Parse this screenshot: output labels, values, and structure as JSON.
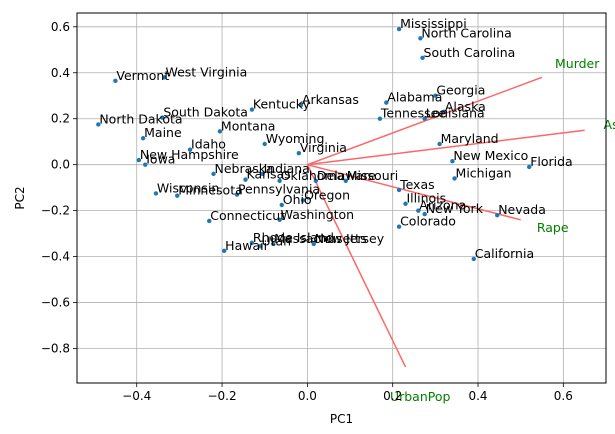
{
  "chart_data": {
    "type": "scatter",
    "title": "",
    "xlabel": "PC1",
    "ylabel": "PC2",
    "xlim": [
      -0.54,
      0.7
    ],
    "ylim": [
      -0.95,
      0.66
    ],
    "xticks": [
      -0.4,
      -0.2,
      0.0,
      0.2,
      0.4,
      0.6
    ],
    "xtick_labels": [
      "−0.4",
      "−0.2",
      "0.0",
      "0.2",
      "0.4",
      "0.6"
    ],
    "yticks": [
      0.6,
      0.4,
      0.2,
      0.0,
      -0.2,
      -0.4,
      -0.6,
      -0.8
    ],
    "ytick_labels": [
      "0.6",
      "0.4",
      "0.2",
      "0.0",
      "−0.2",
      "−0.4",
      "−0.6",
      "−0.8"
    ],
    "grid": true,
    "point_color": "#1f77b4",
    "points": [
      {
        "label": "Mississippi",
        "x": 0.215,
        "y": 0.59
      },
      {
        "label": "North Carolina",
        "x": 0.265,
        "y": 0.55
      },
      {
        "label": "South Carolina",
        "x": 0.27,
        "y": 0.465
      },
      {
        "label": "Vermont",
        "x": -0.45,
        "y": 0.365
      },
      {
        "label": "West Virginia",
        "x": -0.335,
        "y": 0.38
      },
      {
        "label": "Georgia",
        "x": 0.3,
        "y": 0.3
      },
      {
        "label": "Alabama",
        "x": 0.185,
        "y": 0.27
      },
      {
        "label": "Arkansas",
        "x": -0.015,
        "y": 0.26
      },
      {
        "label": "Kentucky",
        "x": -0.13,
        "y": 0.24
      },
      {
        "label": "Alaska",
        "x": 0.32,
        "y": 0.23
      },
      {
        "label": "South Dakota",
        "x": -0.34,
        "y": 0.205
      },
      {
        "label": "Tennessee",
        "x": 0.17,
        "y": 0.2
      },
      {
        "label": "Louisiana",
        "x": 0.275,
        "y": 0.2
      },
      {
        "label": "North Dakota",
        "x": -0.49,
        "y": 0.175
      },
      {
        "label": "Montana",
        "x": -0.205,
        "y": 0.145
      },
      {
        "label": "Maine",
        "x": -0.385,
        "y": 0.115
      },
      {
        "label": "Wyoming",
        "x": -0.1,
        "y": 0.09
      },
      {
        "label": "Maryland",
        "x": 0.31,
        "y": 0.09
      },
      {
        "label": "Idaho",
        "x": -0.275,
        "y": 0.065
      },
      {
        "label": "Virginia",
        "x": -0.02,
        "y": 0.05
      },
      {
        "label": "New Hampshire",
        "x": -0.395,
        "y": 0.02
      },
      {
        "label": "New Mexico",
        "x": 0.34,
        "y": 0.015
      },
      {
        "label": "Iowa",
        "x": -0.38,
        "y": 0.0
      },
      {
        "label": "Florida",
        "x": 0.52,
        "y": -0.01
      },
      {
        "label": "Nebraska",
        "x": -0.22,
        "y": -0.04
      },
      {
        "label": "Indiana",
        "x": -0.105,
        "y": -0.04
      },
      {
        "label": "Kansas",
        "x": -0.145,
        "y": -0.065
      },
      {
        "label": "Oklahoma",
        "x": -0.065,
        "y": -0.07
      },
      {
        "label": "Michigan",
        "x": 0.345,
        "y": -0.06
      },
      {
        "label": "Delaware",
        "x": 0.02,
        "y": -0.07
      },
      {
        "label": "Missouri",
        "x": 0.09,
        "y": -0.07
      },
      {
        "label": "Texas",
        "x": 0.215,
        "y": -0.11
      },
      {
        "label": "Wisconsin",
        "x": -0.355,
        "y": -0.125
      },
      {
        "label": "Minnesota",
        "x": -0.305,
        "y": -0.135
      },
      {
        "label": "Pennsylvania",
        "x": -0.165,
        "y": -0.13
      },
      {
        "label": "Oregon",
        "x": -0.01,
        "y": -0.155
      },
      {
        "label": "Illinois",
        "x": 0.23,
        "y": -0.17
      },
      {
        "label": "Ohio",
        "x": -0.06,
        "y": -0.175
      },
      {
        "label": "Arizona",
        "x": 0.26,
        "y": -0.2
      },
      {
        "label": "New York",
        "x": 0.275,
        "y": -0.215
      },
      {
        "label": "Nevada",
        "x": 0.445,
        "y": -0.22
      },
      {
        "label": "Washington",
        "x": -0.065,
        "y": -0.24
      },
      {
        "label": "Connecticut",
        "x": -0.23,
        "y": -0.245
      },
      {
        "label": "Colorado",
        "x": 0.215,
        "y": -0.27
      },
      {
        "label": "Rhode Island",
        "x": -0.13,
        "y": -0.34
      },
      {
        "label": "Utah",
        "x": -0.11,
        "y": -0.355
      },
      {
        "label": "Massachusetts",
        "x": -0.08,
        "y": -0.345
      },
      {
        "label": "New Jersey",
        "x": 0.015,
        "y": -0.345
      },
      {
        "label": "Hawaii",
        "x": -0.195,
        "y": -0.375
      },
      {
        "label": "California",
        "x": 0.39,
        "y": -0.41
      }
    ],
    "loadings_color": "#ff6666",
    "loadings_label_color": "#008000",
    "loadings": [
      {
        "name": "Murder",
        "x": 0.55,
        "y": 0.38
      },
      {
        "name": "Assault",
        "x": 0.65,
        "y": 0.15
      },
      {
        "name": "UrbanPop",
        "x": 0.23,
        "y": -0.88
      },
      {
        "name": "Rape",
        "x": 0.5,
        "y": -0.24
      }
    ]
  }
}
